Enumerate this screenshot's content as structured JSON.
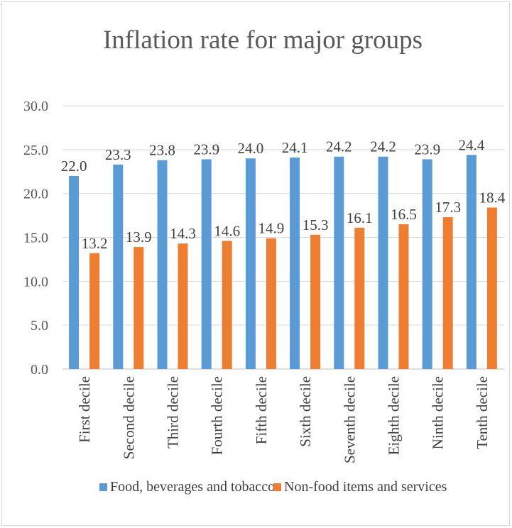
{
  "chart_data": {
    "type": "bar",
    "title": "Inflation rate for major groups",
    "categories": [
      "First decile",
      "Second decile",
      "Third decile",
      "Fourth decile",
      "Fifth decile",
      "Sixth decile",
      "Seventh decile",
      "Eighth decile",
      "Ninth decile",
      "Tenth decile"
    ],
    "series": [
      {
        "name": "Food, beverages and tobacco",
        "color": "#5b9bd5",
        "values": [
          22.0,
          23.3,
          23.8,
          23.9,
          24.0,
          24.1,
          24.2,
          24.2,
          23.9,
          24.4
        ],
        "labels": [
          "22.0",
          "23.3",
          "23.8",
          "23.9",
          "24.0",
          "24.1",
          "24.2",
          "24.2",
          "23.9",
          "24.4"
        ]
      },
      {
        "name": "Non-food items and services",
        "color": "#ed7d31",
        "values": [
          13.2,
          13.9,
          14.3,
          14.6,
          14.9,
          15.3,
          16.1,
          16.5,
          17.3,
          18.4
        ],
        "labels": [
          "13.2",
          "13.9",
          "14.3",
          "14.6",
          "14.9",
          "15.3",
          "16.1",
          "16.5",
          "17.3",
          "18.4"
        ]
      }
    ],
    "ylim": [
      0,
      30
    ],
    "yticks": [
      "0.0",
      "5.0",
      "10.0",
      "15.0",
      "20.0",
      "25.0",
      "30.0"
    ],
    "grid": true,
    "legend_position": "bottom"
  }
}
